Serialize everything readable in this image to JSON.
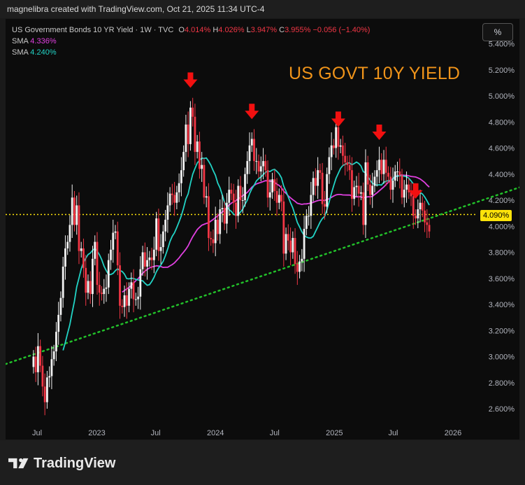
{
  "attribution": "magnelibra created with TradingView.com, Oct 21, 2025 11:34 UTC-4",
  "legend": {
    "symbol": "US Government Bonds 10 YR Yield · 1W · TVC",
    "o_label": "O",
    "o_value": "4.014%",
    "h_label": "H",
    "h_value": "4.026%",
    "l_label": "L",
    "l_value": "3.947%",
    "c_label": "C",
    "c_value": "3.955%",
    "change": "−0.056 (−1.40%)",
    "sma1_label": "SMA",
    "sma1_value": "4.336%",
    "sma1_color": "#e040e0",
    "sma2_label": "SMA",
    "sma2_value": "4.240%",
    "sma2_color": "#22d3c5"
  },
  "toolbar": {
    "percent_button": "%"
  },
  "footer": {
    "brand": "TradingView",
    "logo_icon": "tradingview-logo-icon"
  },
  "colors": {
    "up": "#f2f2f2",
    "down": "#f23645",
    "title": "#f0941a",
    "price_line": "#ffe30a",
    "trendline": "#22c02a",
    "arrow": "#f21010"
  },
  "chart_data": {
    "type": "candlestick",
    "title": "US GOVT 10Y YIELD",
    "x_tick_labels": [
      "Jul",
      "2023",
      "Jul",
      "2024",
      "Jul",
      "2025",
      "Jul",
      "2026"
    ],
    "x_ticks": [
      "2022-07",
      "2023-01",
      "2023-07",
      "2024-01",
      "2024-07",
      "2025-01",
      "2025-07",
      "2026-01"
    ],
    "y_tick_labels": [
      "2.600%",
      "2.800%",
      "3.000%",
      "3.200%",
      "3.400%",
      "3.600%",
      "3.800%",
      "4.000%",
      "4.200%",
      "4.400%",
      "4.600%",
      "4.800%",
      "5.000%",
      "5.200%",
      "5.400%"
    ],
    "ylim": [
      2.5,
      5.45
    ],
    "current_price": 4.09,
    "current_price_label": "4.090%",
    "ohlc_close_points": [
      [
        "2022-06-20",
        3.0
      ],
      [
        "2022-06-27",
        2.88
      ],
      [
        "2022-07-04",
        3.08
      ],
      [
        "2022-07-11",
        2.93
      ],
      [
        "2022-07-18",
        2.77
      ],
      [
        "2022-07-25",
        2.65
      ],
      [
        "2022-08-01",
        2.84
      ],
      [
        "2022-08-08",
        2.85
      ],
      [
        "2022-08-15",
        2.98
      ],
      [
        "2022-08-22",
        3.04
      ],
      [
        "2022-08-29",
        3.19
      ],
      [
        "2022-09-05",
        3.32
      ],
      [
        "2022-09-12",
        3.45
      ],
      [
        "2022-09-19",
        3.69
      ],
      [
        "2022-09-26",
        3.83
      ],
      [
        "2022-10-03",
        3.88
      ],
      [
        "2022-10-10",
        4.01
      ],
      [
        "2022-10-17",
        4.22
      ],
      [
        "2022-10-24",
        4.01
      ],
      [
        "2022-10-31",
        4.16
      ],
      [
        "2022-11-07",
        3.81
      ],
      [
        "2022-11-14",
        3.83
      ],
      [
        "2022-11-21",
        3.68
      ],
      [
        "2022-11-28",
        3.49
      ],
      [
        "2022-12-05",
        3.58
      ],
      [
        "2022-12-12",
        3.48
      ],
      [
        "2022-12-19",
        3.75
      ],
      [
        "2022-12-26",
        3.88
      ],
      [
        "2023-01-02",
        3.55
      ],
      [
        "2023-01-09",
        3.49
      ],
      [
        "2023-01-16",
        3.48
      ],
      [
        "2023-01-23",
        3.52
      ],
      [
        "2023-01-30",
        3.53
      ],
      [
        "2023-02-06",
        3.74
      ],
      [
        "2023-02-13",
        3.82
      ],
      [
        "2023-02-20",
        3.95
      ],
      [
        "2023-02-27",
        3.96
      ],
      [
        "2023-03-06",
        3.7
      ],
      [
        "2023-03-13",
        3.39
      ],
      [
        "2023-03-20",
        3.38
      ],
      [
        "2023-03-27",
        3.47
      ],
      [
        "2023-04-03",
        3.39
      ],
      [
        "2023-04-10",
        3.52
      ],
      [
        "2023-04-17",
        3.57
      ],
      [
        "2023-04-24",
        3.44
      ],
      [
        "2023-05-01",
        3.44
      ],
      [
        "2023-05-08",
        3.46
      ],
      [
        "2023-05-15",
        3.67
      ],
      [
        "2023-05-22",
        3.8
      ],
      [
        "2023-05-29",
        3.69
      ],
      [
        "2023-06-05",
        3.74
      ],
      [
        "2023-06-12",
        3.76
      ],
      [
        "2023-06-19",
        3.74
      ],
      [
        "2023-06-26",
        3.82
      ],
      [
        "2023-07-03",
        4.06
      ],
      [
        "2023-07-10",
        3.81
      ],
      [
        "2023-07-17",
        3.84
      ],
      [
        "2023-07-24",
        3.96
      ],
      [
        "2023-07-31",
        4.05
      ],
      [
        "2023-08-07",
        4.16
      ],
      [
        "2023-08-14",
        4.25
      ],
      [
        "2023-08-21",
        4.24
      ],
      [
        "2023-08-28",
        4.18
      ],
      [
        "2023-09-04",
        4.26
      ],
      [
        "2023-09-11",
        4.33
      ],
      [
        "2023-09-18",
        4.43
      ],
      [
        "2023-09-25",
        4.57
      ],
      [
        "2023-10-02",
        4.78
      ],
      [
        "2023-10-09",
        4.63
      ],
      [
        "2023-10-16",
        4.91
      ],
      [
        "2023-10-23",
        4.84
      ],
      [
        "2023-10-30",
        4.57
      ],
      [
        "2023-11-06",
        4.65
      ],
      [
        "2023-11-13",
        4.44
      ],
      [
        "2023-11-20",
        4.47
      ],
      [
        "2023-11-27",
        4.22
      ],
      [
        "2023-12-04",
        4.23
      ],
      [
        "2023-12-11",
        3.91
      ],
      [
        "2023-12-18",
        3.9
      ],
      [
        "2023-12-25",
        3.87
      ],
      [
        "2024-01-01",
        4.05
      ],
      [
        "2024-01-08",
        3.94
      ],
      [
        "2024-01-15",
        4.13
      ],
      [
        "2024-01-22",
        4.14
      ],
      [
        "2024-01-29",
        4.02
      ],
      [
        "2024-02-05",
        4.18
      ],
      [
        "2024-02-12",
        4.28
      ],
      [
        "2024-02-19",
        4.25
      ],
      [
        "2024-02-26",
        4.18
      ],
      [
        "2024-03-04",
        4.08
      ],
      [
        "2024-03-11",
        4.31
      ],
      [
        "2024-03-18",
        4.2
      ],
      [
        "2024-03-25",
        4.2
      ],
      [
        "2024-04-01",
        4.4
      ],
      [
        "2024-04-08",
        4.5
      ],
      [
        "2024-04-15",
        4.62
      ],
      [
        "2024-04-22",
        4.67
      ],
      [
        "2024-04-29",
        4.5
      ],
      [
        "2024-05-06",
        4.5
      ],
      [
        "2024-05-13",
        4.42
      ],
      [
        "2024-05-20",
        4.46
      ],
      [
        "2024-05-27",
        4.5
      ],
      [
        "2024-06-03",
        4.43
      ],
      [
        "2024-06-10",
        4.22
      ],
      [
        "2024-06-17",
        4.26
      ],
      [
        "2024-06-24",
        4.36
      ],
      [
        "2024-07-01",
        4.27
      ],
      [
        "2024-07-08",
        4.18
      ],
      [
        "2024-07-15",
        4.24
      ],
      [
        "2024-07-22",
        4.19
      ],
      [
        "2024-07-29",
        3.79
      ],
      [
        "2024-08-05",
        3.94
      ],
      [
        "2024-08-12",
        3.89
      ],
      [
        "2024-08-19",
        3.8
      ],
      [
        "2024-08-26",
        3.91
      ],
      [
        "2024-09-02",
        3.71
      ],
      [
        "2024-09-09",
        3.65
      ],
      [
        "2024-09-16",
        3.73
      ],
      [
        "2024-09-23",
        3.75
      ],
      [
        "2024-09-30",
        3.98
      ],
      [
        "2024-10-07",
        4.08
      ],
      [
        "2024-10-14",
        4.08
      ],
      [
        "2024-10-21",
        4.24
      ],
      [
        "2024-10-28",
        4.37
      ],
      [
        "2024-11-04",
        4.31
      ],
      [
        "2024-11-11",
        4.43
      ],
      [
        "2024-11-18",
        4.41
      ],
      [
        "2024-11-25",
        4.17
      ],
      [
        "2024-12-02",
        4.15
      ],
      [
        "2024-12-09",
        4.4
      ],
      [
        "2024-12-16",
        4.53
      ],
      [
        "2024-12-23",
        4.62
      ],
      [
        "2024-12-30",
        4.6
      ],
      [
        "2025-01-06",
        4.76
      ],
      [
        "2025-01-13",
        4.61
      ],
      [
        "2025-01-20",
        4.62
      ],
      [
        "2025-01-27",
        4.54
      ],
      [
        "2025-02-03",
        4.49
      ],
      [
        "2025-02-10",
        4.47
      ],
      [
        "2025-02-17",
        4.43
      ],
      [
        "2025-02-24",
        4.21
      ],
      [
        "2025-03-03",
        4.3
      ],
      [
        "2025-03-10",
        4.31
      ],
      [
        "2025-03-17",
        4.25
      ],
      [
        "2025-03-24",
        4.26
      ],
      [
        "2025-03-31",
        4.01
      ],
      [
        "2025-04-07",
        4.49
      ],
      [
        "2025-04-14",
        4.32
      ],
      [
        "2025-04-21",
        4.24
      ],
      [
        "2025-04-28",
        4.31
      ],
      [
        "2025-05-05",
        4.38
      ],
      [
        "2025-05-12",
        4.43
      ],
      [
        "2025-05-19",
        4.51
      ],
      [
        "2025-05-26",
        4.4
      ],
      [
        "2025-06-02",
        4.51
      ],
      [
        "2025-06-09",
        4.41
      ],
      [
        "2025-06-16",
        4.38
      ],
      [
        "2025-06-23",
        4.28
      ],
      [
        "2025-06-30",
        4.35
      ],
      [
        "2025-07-07",
        4.42
      ],
      [
        "2025-07-14",
        4.42
      ],
      [
        "2025-07-21",
        4.39
      ],
      [
        "2025-07-28",
        4.22
      ],
      [
        "2025-08-04",
        4.28
      ],
      [
        "2025-08-11",
        4.32
      ],
      [
        "2025-08-18",
        4.26
      ],
      [
        "2025-08-25",
        4.23
      ],
      [
        "2025-09-01",
        4.08
      ],
      [
        "2025-09-08",
        4.06
      ],
      [
        "2025-09-15",
        4.13
      ],
      [
        "2025-09-22",
        4.18
      ],
      [
        "2025-09-29",
        4.12
      ],
      [
        "2025-10-06",
        4.03
      ],
      [
        "2025-10-13",
        4.01
      ],
      [
        "2025-10-20",
        3.96
      ]
    ],
    "sma_series": [
      {
        "name": "SMA",
        "value_label": "4.336%"
      },
      {
        "name": "SMA",
        "value_label": "4.240%"
      }
    ],
    "annotations": {
      "arrows": [
        "2023-10-16",
        "2024-04-22",
        "2025-01-13",
        "2025-05-19",
        "2025-09-08"
      ],
      "trendline": [
        [
          "2022-06-01",
          3.0
        ],
        [
          "2025-12-29",
          4.12
        ]
      ],
      "horizontal_line": 4.09
    },
    "grid": false,
    "legend_position": "top-left"
  }
}
